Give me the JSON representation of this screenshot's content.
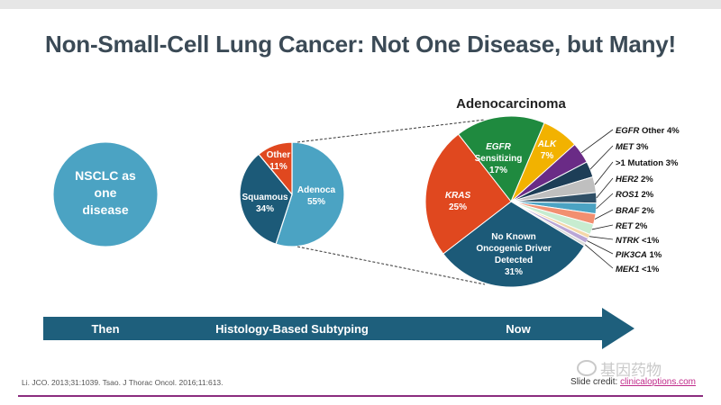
{
  "slide": {
    "title": "Non-Small-Cell Lung Cancer: Not One Disease, but Many!",
    "citation": "Li. JCO. 2013;31:1039. Tsao. J Thorac Oncol. 2016;11:613.",
    "credit_prefix": "Slide credit: ",
    "credit_link": "clinicaloptions.com",
    "watermark": "基因药物"
  },
  "colors": {
    "teal_light": "#4ba3c3",
    "teal_dark": "#1c5a78",
    "orange": "#e0481f",
    "green": "#1f8a3f",
    "yellow": "#f2b200",
    "purple": "#6a2b86",
    "arrow": "#1e5f7c",
    "title": "#3b4a56"
  },
  "chart_data": [
    {
      "type": "pie",
      "title": "",
      "slices": [
        {
          "label": "NSCLC as one disease",
          "value": 100
        }
      ]
    },
    {
      "type": "pie",
      "title": "",
      "slices": [
        {
          "label": "Adenoca",
          "value": 55,
          "value_label": "55%"
        },
        {
          "label": "Squamous",
          "value": 34,
          "value_label": "34%"
        },
        {
          "label": "Other",
          "value": 11,
          "value_label": "11%"
        }
      ]
    },
    {
      "type": "pie",
      "title": "Adenocarcinoma",
      "slices": [
        {
          "label": "EGFR Sensitizing",
          "italic_part": "EGFR",
          "value": 17,
          "value_label": "17%",
          "color": "#1f8a3f"
        },
        {
          "label": "ALK",
          "value": 7,
          "value_label": "7%",
          "color": "#f2b200"
        },
        {
          "label": "EGFR Other",
          "value": 4,
          "value_label": "4%",
          "color": "#6a2b86"
        },
        {
          "label": "MET",
          "value": 3,
          "value_label": "3%",
          "color": "#1d3e57"
        },
        {
          "label": ">1 Mutation",
          "value": 3,
          "value_label": "3%",
          "color": "#bfbfbf"
        },
        {
          "label": "HER2",
          "value": 2,
          "value_label": "2%",
          "color": "#2f4f66"
        },
        {
          "label": "ROS1",
          "value": 2,
          "value_label": "2%",
          "color": "#4ba3c3"
        },
        {
          "label": "BRAF",
          "value": 2,
          "value_label": "2%",
          "color": "#f28f70"
        },
        {
          "label": "RET",
          "value": 2,
          "value_label": "2%",
          "color": "#c7ecd0"
        },
        {
          "label": "NTRK",
          "value": 0.8,
          "value_label": "<1%",
          "color": "#f4d7a8"
        },
        {
          "label": "PIK3CA",
          "value": 1,
          "value_label": "1%",
          "color": "#b9a6d6"
        },
        {
          "label": "MEK1",
          "value": 0.6,
          "value_label": "<1%",
          "color": "#d9d9d9"
        },
        {
          "label": "No Known Oncogenic Driver Detected",
          "value": 31,
          "value_label": "31%",
          "color": "#1c5a78"
        },
        {
          "label": "KRAS",
          "value": 25,
          "value_label": "25%",
          "color": "#e0481f"
        }
      ]
    }
  ],
  "arrow": {
    "labels": [
      "Then",
      "Histology-Based Subtyping",
      "Now"
    ]
  }
}
